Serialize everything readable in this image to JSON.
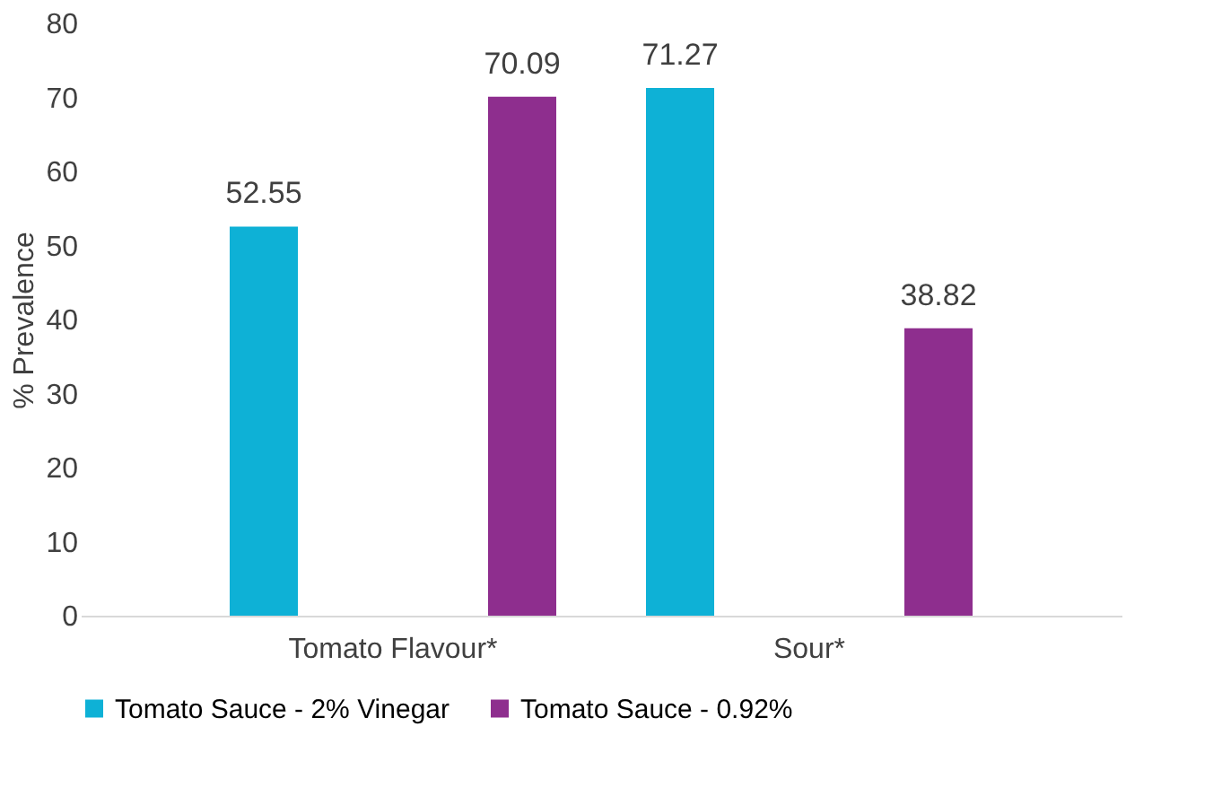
{
  "chart_data": {
    "type": "bar",
    "ylabel": "% Prevalence",
    "categories": [
      "Tomato Flavour*",
      "Sour*"
    ],
    "series": [
      {
        "name": "Tomato Sauce - 2% Vinegar",
        "color": "#0eb1d6",
        "values": [
          52.55,
          71.27
        ]
      },
      {
        "name": "Tomato Sauce - 0.92%",
        "color": "#8e2e8e",
        "values": [
          70.09,
          38.82
        ]
      }
    ],
    "ylim": [
      0,
      80
    ],
    "yticks": [
      0,
      10,
      20,
      30,
      40,
      50,
      60,
      70,
      80
    ],
    "data_labels": true,
    "legend": "bottom",
    "grid": false
  }
}
